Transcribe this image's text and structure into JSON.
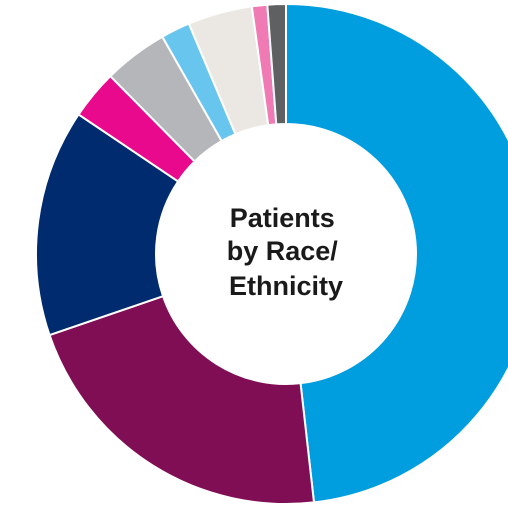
{
  "chart_data": {
    "type": "pie",
    "title": "",
    "center_label": [
      "Patients",
      "by Race/",
      "Ethnicity"
    ],
    "legend": "none",
    "slices": [
      {
        "value": 48.6,
        "color": "#009ddf"
      },
      {
        "value": 21.7,
        "color": "#800e55"
      },
      {
        "value": 14.8,
        "color": "#002b6f"
      },
      {
        "value": 3.2,
        "color": "#e8098d"
      },
      {
        "value": 4.2,
        "color": "#b4b6b9"
      },
      {
        "value": 1.9,
        "color": "#68c6ee"
      },
      {
        "value": 4.2,
        "color": "#ebe8e4"
      },
      {
        "value": 1.0,
        "color": "#f07ab3"
      },
      {
        "value": 1.2,
        "color": "#5f6062"
      }
    ]
  }
}
